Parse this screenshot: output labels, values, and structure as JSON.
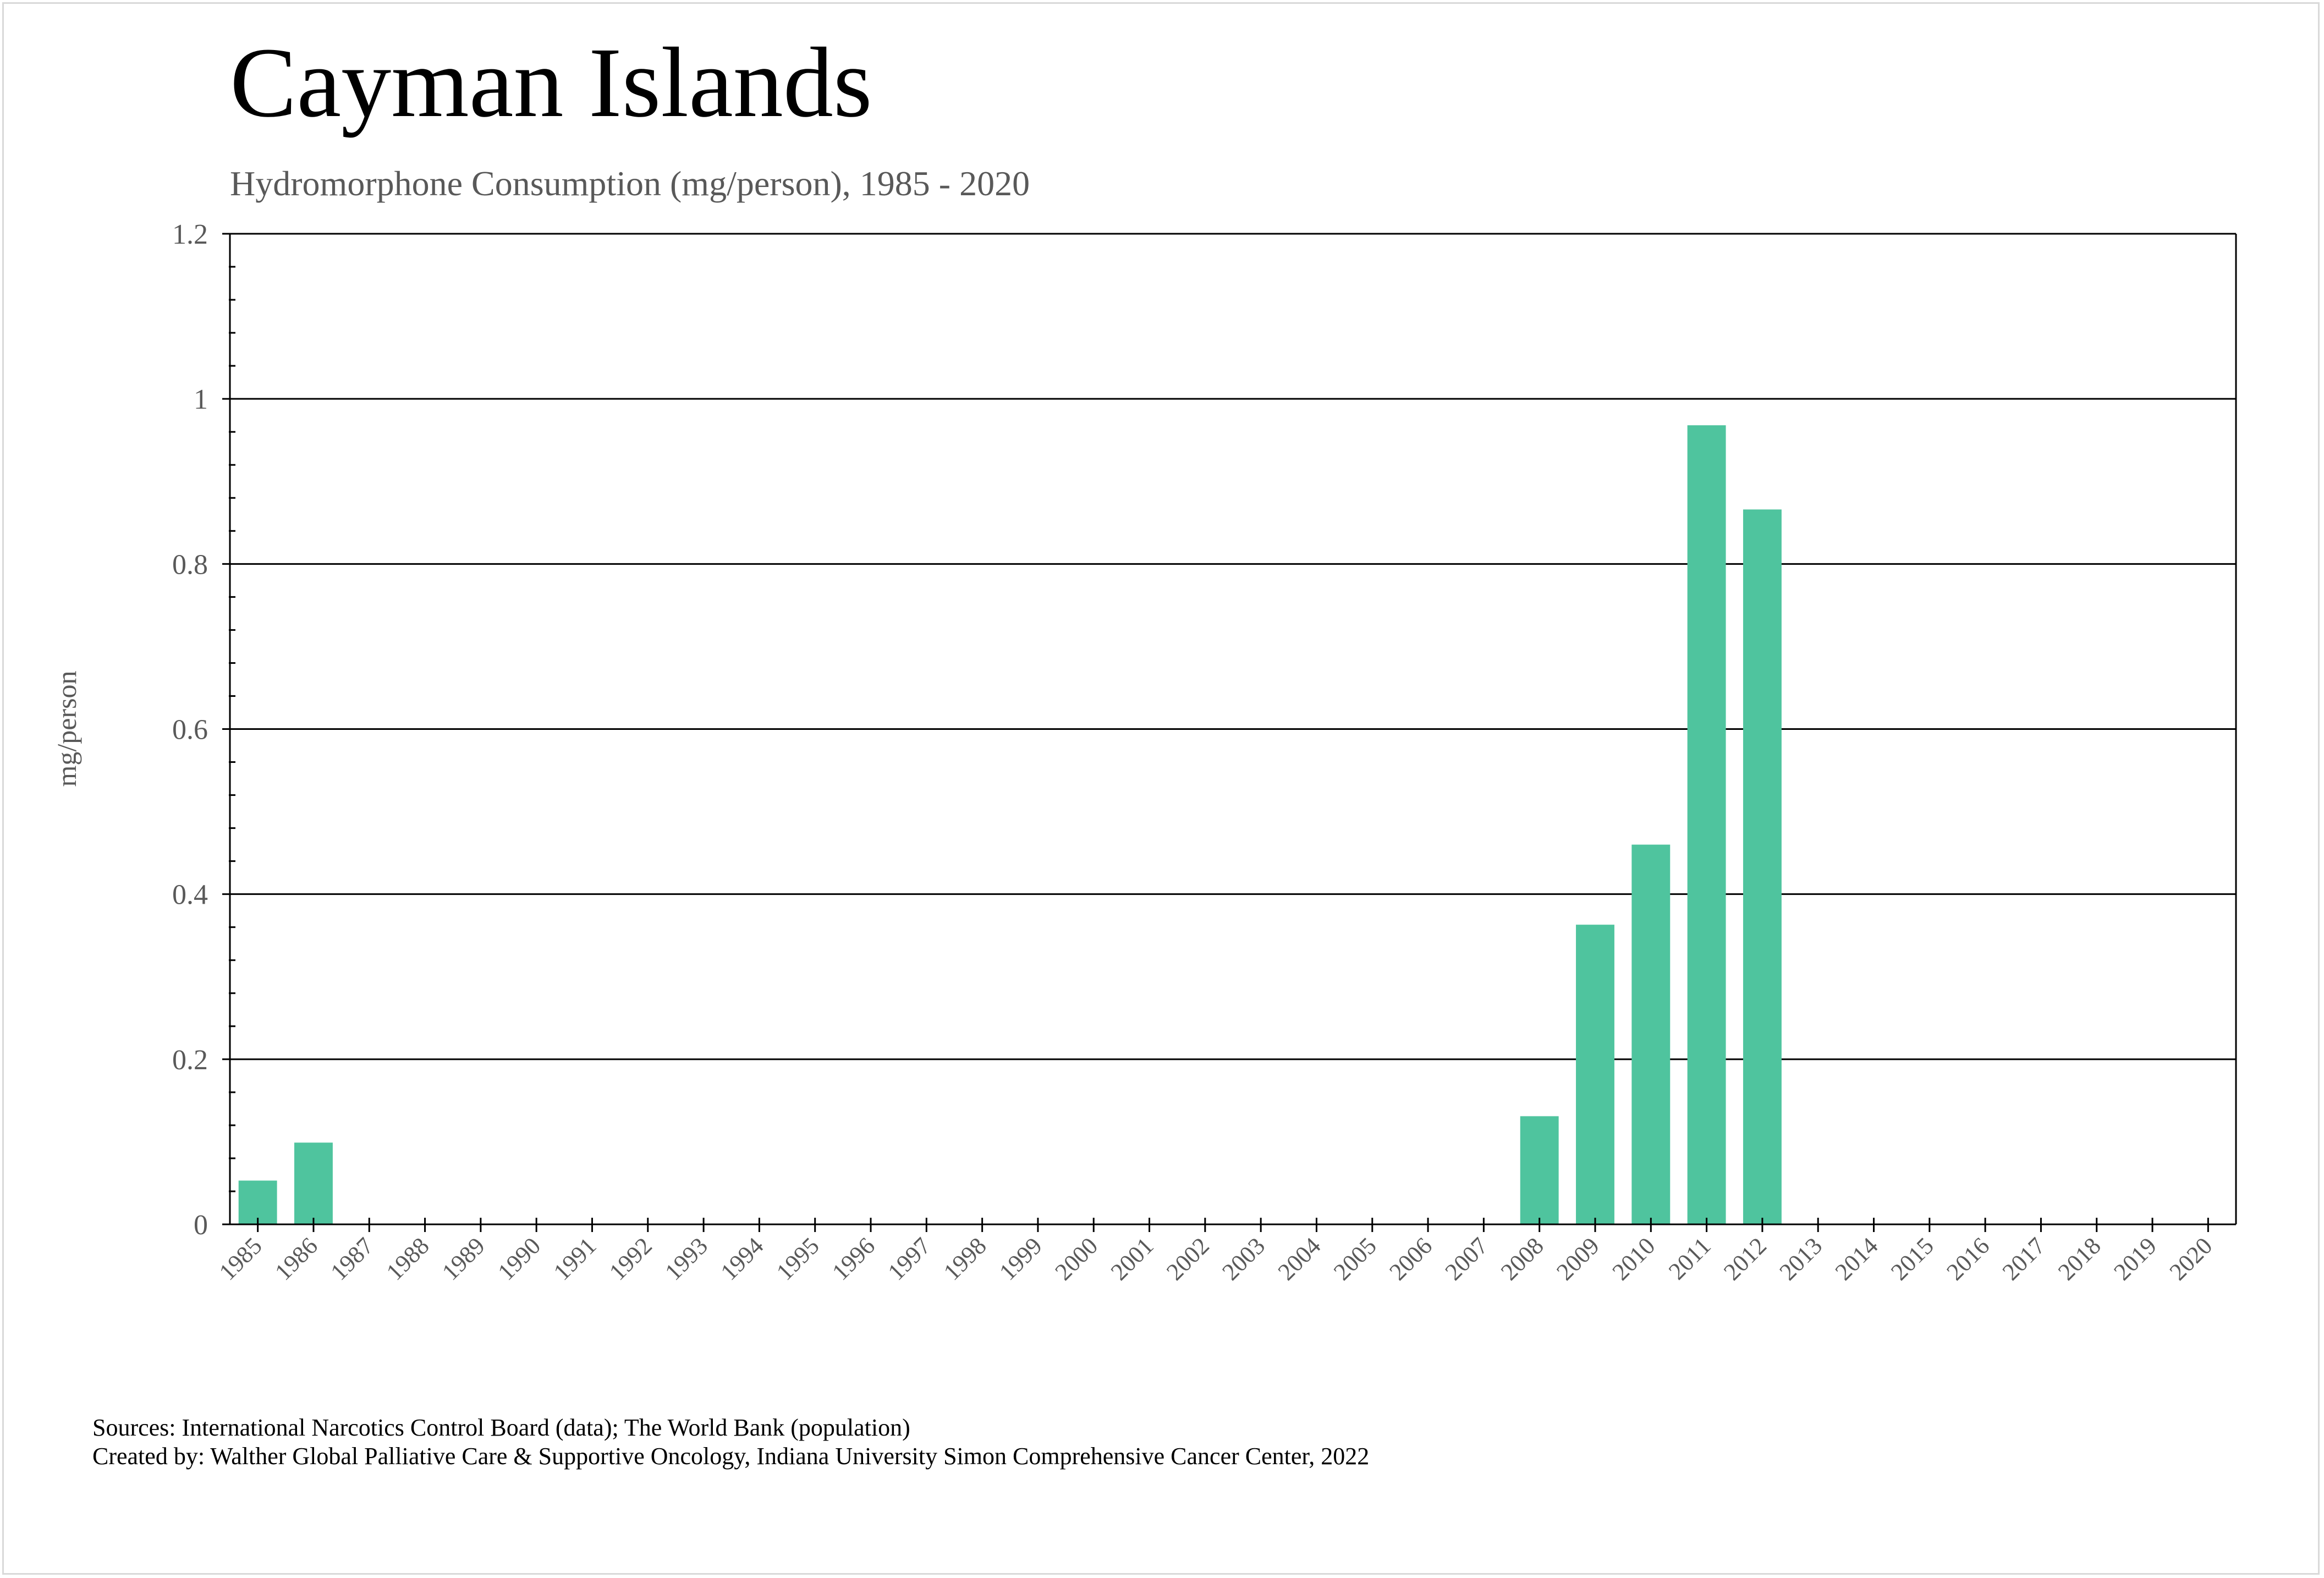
{
  "chart_data": {
    "type": "bar",
    "title": "Cayman Islands",
    "subtitle": "Hydromorphone Consumption (mg/person), 1985 - 2020",
    "xlabel": "",
    "ylabel": "mg/person",
    "ylim": [
      0,
      1.2
    ],
    "yticks": [
      0,
      0.2,
      0.4,
      0.6,
      0.8,
      1,
      1.2
    ],
    "ytick_labels": [
      "0",
      "0.2",
      "0.4",
      "0.6",
      "0.8",
      "1",
      "1.2"
    ],
    "grid": "horizontal",
    "legend": "none",
    "bar_color": "#4fc49e",
    "categories": [
      "1985",
      "1986",
      "1987",
      "1988",
      "1989",
      "1990",
      "1991",
      "1992",
      "1993",
      "1994",
      "1995",
      "1996",
      "1997",
      "1998",
      "1999",
      "2000",
      "2001",
      "2002",
      "2003",
      "2004",
      "2005",
      "2006",
      "2007",
      "2008",
      "2009",
      "2010",
      "2011",
      "2012",
      "2013",
      "2014",
      "2015",
      "2016",
      "2017",
      "2018",
      "2019",
      "2020"
    ],
    "values": [
      0.053,
      0.099,
      0,
      0,
      0,
      0,
      0,
      0,
      0,
      0,
      0,
      0,
      0,
      0,
      0,
      0,
      0,
      0,
      0,
      0,
      0,
      0,
      0,
      0.131,
      0.363,
      0.46,
      0.968,
      0.866,
      0,
      0,
      0,
      0,
      0,
      0,
      0,
      0
    ]
  },
  "footer": {
    "sources": "Sources: International Narcotics Control Board (data); The World Bank (population)",
    "created_by": "Created by: Walther Global Palliative Care & Supportive Oncology, Indiana University Simon Comprehensive Cancer Center, 2022"
  }
}
